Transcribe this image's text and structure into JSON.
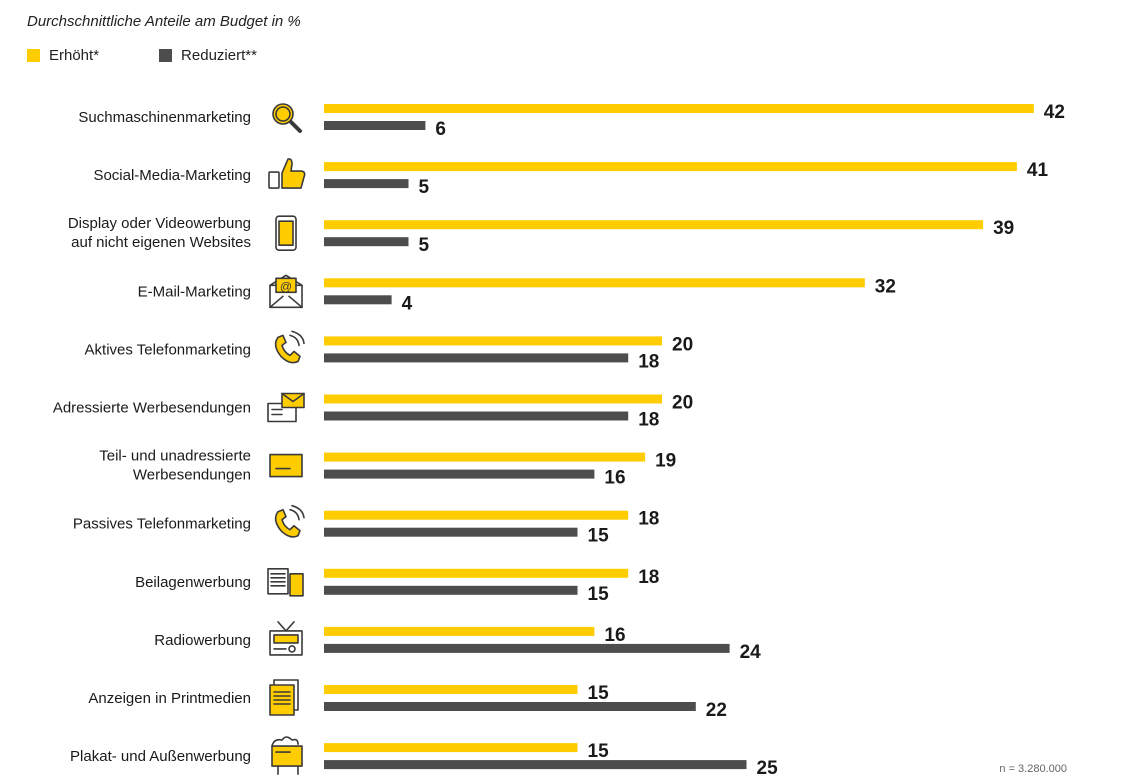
{
  "chart_data": {
    "type": "bar",
    "orientation": "horizontal",
    "subtitle": "Durchschnittliche Anteile am Budget in %",
    "categories": [
      [
        "Suchmaschinenmarketing"
      ],
      [
        "Social-Media-Marketing"
      ],
      [
        "Display oder Videowerbung",
        "auf nicht eigenen Websites"
      ],
      [
        "E-Mail-Marketing"
      ],
      [
        "Aktives Telefonmarketing"
      ],
      [
        "Adressierte Werbesendungen"
      ],
      [
        "Teil- und unadressierte",
        "Werbesendungen"
      ],
      [
        "Passives Telefonmarketing"
      ],
      [
        "Beilagenwerbung"
      ],
      [
        "Radiowerbung"
      ],
      [
        "Anzeigen in Printmedien"
      ],
      [
        "Plakat- und Außenwerbung"
      ]
    ],
    "icons": [
      "search-icon",
      "thumbs-up-icon",
      "smartphone-icon",
      "email-icon",
      "phone-icon",
      "letter-icon",
      "envelope-icon",
      "phone-icon",
      "brochure-icon",
      "radio-icon",
      "print-ad-icon",
      "billboard-icon"
    ],
    "series": [
      {
        "name": "Erhöht*",
        "color": "#ffcc00",
        "values": [
          42,
          41,
          39,
          32,
          20,
          20,
          19,
          18,
          18,
          16,
          15,
          15
        ]
      },
      {
        "name": "Reduziert**",
        "color": "#4d4d4d",
        "values": [
          6,
          5,
          5,
          4,
          18,
          18,
          16,
          15,
          15,
          24,
          22,
          25
        ]
      }
    ],
    "legend_position": "top-left",
    "grid": false,
    "xlim": [
      0,
      42
    ],
    "note": "n = 3.280.000"
  }
}
